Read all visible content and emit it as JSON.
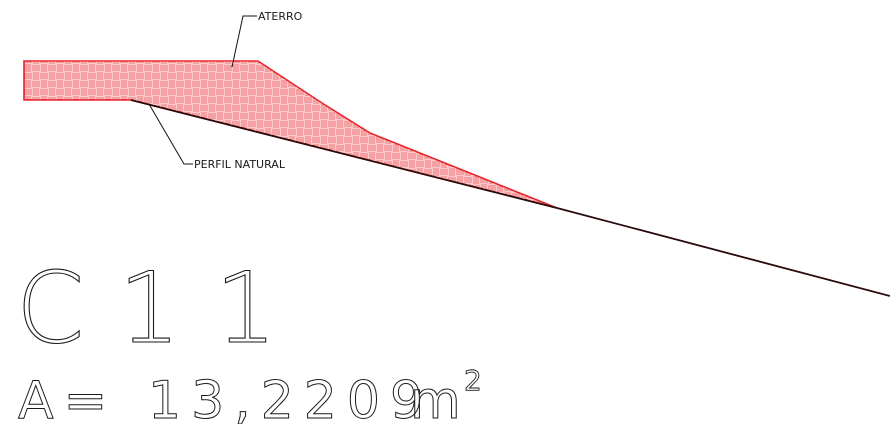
{
  "labels": {
    "fill_label": "ATERRO",
    "ground_label": "PERFIL NATURAL"
  },
  "section": {
    "name": "C11",
    "area_prefix": "A=",
    "area_value": "13,2209",
    "area_unit": "m",
    "area_exponent": "2"
  },
  "colors": {
    "fill_outline": "#e8262d",
    "fill_hatch": "#e8262d",
    "fill_background": "#fdeaea",
    "ground_line": "#2a0a0a",
    "leader_lines": "#111111",
    "text": "#1a1a1a"
  }
}
